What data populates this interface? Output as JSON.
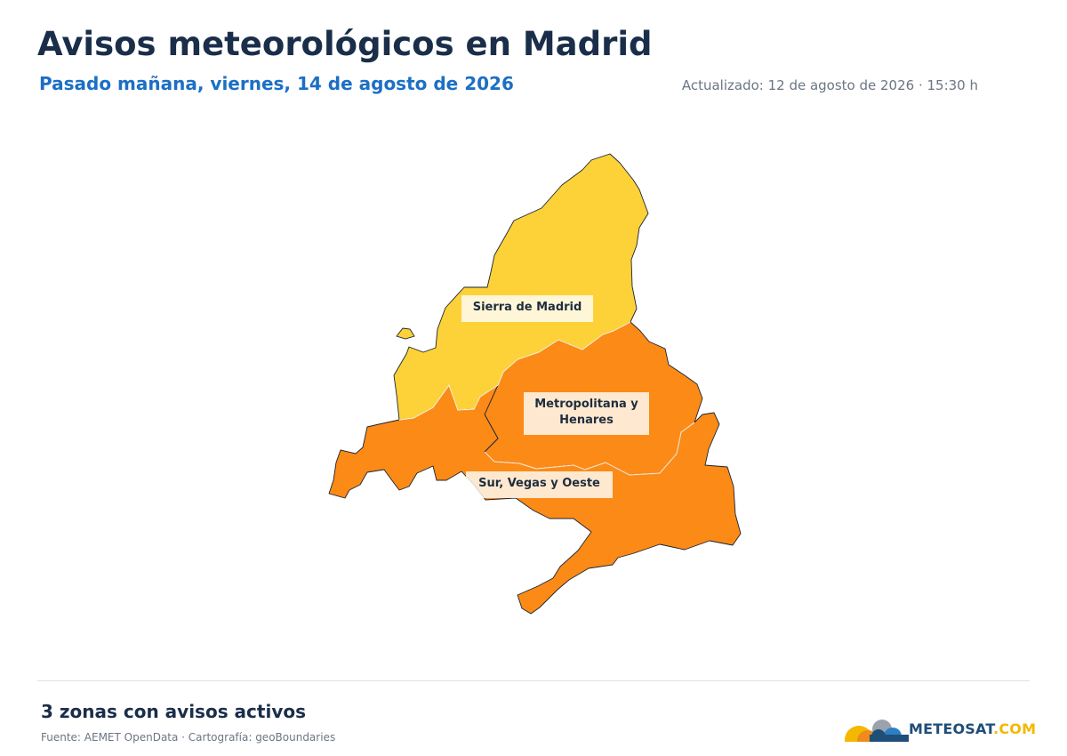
{
  "header": {
    "title": "Avisos meteorológicos en Madrid",
    "subtitle": "Pasado mañana, viernes, 14 de agosto de 2026",
    "updated": "Actualizado: 12 de agosto de 2026 · 15:30 h"
  },
  "map": {
    "region": "Madrid",
    "zones": [
      {
        "label": "Sierra de Madrid",
        "warning_color": "#FDD138"
      },
      {
        "label": "Metropolitana y Henares",
        "warning_color": "#FC8A16"
      },
      {
        "label": "Sur, Vegas y Oeste",
        "warning_color": "#FC8A16"
      }
    ]
  },
  "footer": {
    "summary": "3 zonas con avisos activos",
    "source": "Fuente: AEMET OpenData · Cartografía: geoBoundaries",
    "brand_primary": "METEOSAT",
    "brand_secondary": ".COM",
    "colors": {
      "brand_dark": "#1f4e79",
      "brand_accent": "#f5b800"
    }
  }
}
